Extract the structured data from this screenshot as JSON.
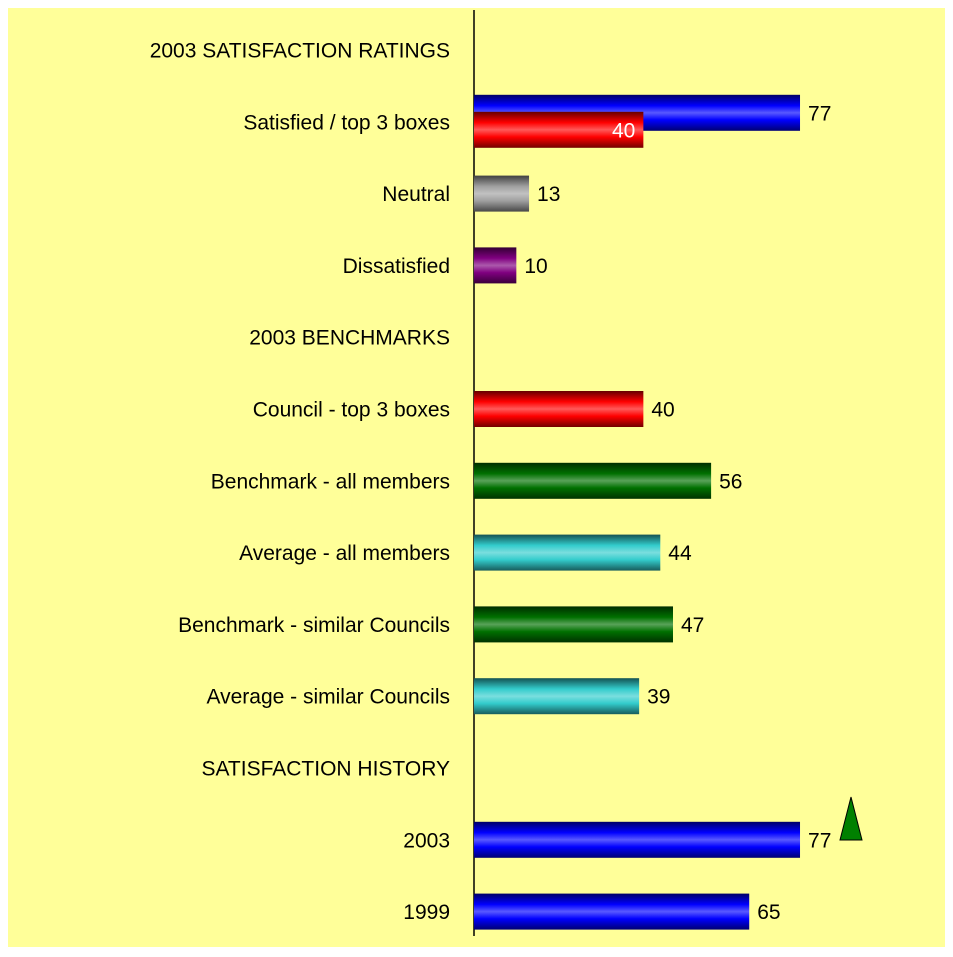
{
  "chart_data": {
    "type": "bar",
    "orientation": "horizontal",
    "categories": [
      "2003 SATISFACTION RATINGS",
      "Satisfied / top 3 boxes",
      "Neutral",
      "Dissatisfied",
      "2003 BENCHMARKS",
      "Council - top 3 boxes",
      "Benchmark - all members",
      "Average - all members",
      "Benchmark - similar Councils",
      "Average - similar Councils",
      "SATISFACTION HISTORY",
      "2003",
      "1999"
    ],
    "series": [
      {
        "values": [
          null,
          77,
          13,
          10,
          null,
          40,
          56,
          44,
          47,
          39,
          null,
          77,
          65
        ],
        "colors": [
          null,
          "#0000ff",
          "#a0a0a0",
          "#800080",
          null,
          "#ff0000",
          "#007000",
          "#33cccc",
          "#007000",
          "#33cccc",
          null,
          "#0000ff",
          "#0000ff"
        ]
      },
      {
        "values": [
          null,
          40,
          null,
          null,
          null,
          null,
          null,
          null,
          null,
          null,
          null,
          null,
          null
        ],
        "colors": [
          null,
          "#ff0000",
          null,
          null,
          null,
          null,
          null,
          null,
          null,
          null,
          null,
          null,
          null
        ]
      }
    ],
    "xlim": [
      0,
      100
    ],
    "background": "#ffff99"
  }
}
